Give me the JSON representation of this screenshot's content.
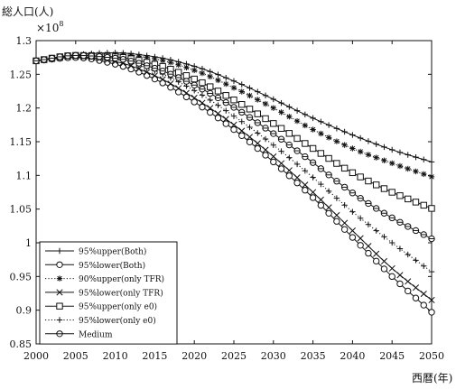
{
  "chart_data": {
    "type": "line",
    "ylabel": "総人口(人)",
    "xlabel": "西暦(年)",
    "y_multiplier": "×10^8",
    "y_multiplier_base": "×10",
    "y_multiplier_exp": "8",
    "xlim": [
      2000,
      2050
    ],
    "ylim": [
      0.85,
      1.3
    ],
    "x_ticks": [
      2000,
      2005,
      2010,
      2015,
      2020,
      2025,
      2030,
      2035,
      2040,
      2045,
      2050
    ],
    "y_ticks": [
      0.85,
      0.9,
      0.95,
      1,
      1.05,
      1.1,
      1.15,
      1.2,
      1.25,
      1.3
    ],
    "y_tick_labels": [
      "0.85",
      "0.9",
      "0.95",
      "1",
      "1.05",
      "1.1",
      "1.15",
      "1.2",
      "1.25",
      "1.3"
    ],
    "grid": false,
    "legend_position": "bottom-left",
    "x": [
      2000,
      2005,
      2010,
      2015,
      2020,
      2025,
      2030,
      2035,
      2040,
      2045,
      2050
    ],
    "series": [
      {
        "name": "95%upper(Both)",
        "marker": "plus",
        "line": "solid",
        "values": [
          1.27,
          1.279,
          1.282,
          1.276,
          1.262,
          1.24,
          1.213,
          1.185,
          1.16,
          1.138,
          1.12
        ]
      },
      {
        "name": "95%lower(Both)",
        "marker": "circle",
        "line": "solid",
        "values": [
          1.27,
          1.275,
          1.265,
          1.243,
          1.209,
          1.168,
          1.12,
          1.067,
          1.008,
          0.95,
          0.897
        ]
      },
      {
        "name": "90%upper(only TFR)",
        "marker": "asterisk",
        "line": "dotted",
        "values": [
          1.27,
          1.279,
          1.28,
          1.273,
          1.256,
          1.23,
          1.2,
          1.168,
          1.14,
          1.118,
          1.098
        ]
      },
      {
        "name": "95%lower(only TFR)",
        "marker": "x",
        "line": "solid",
        "values": [
          1.27,
          1.276,
          1.269,
          1.248,
          1.215,
          1.175,
          1.128,
          1.075,
          1.018,
          0.962,
          0.915
        ]
      },
      {
        "name": "95%upper(only e0)",
        "marker": "square",
        "line": "solid",
        "values": [
          1.27,
          1.278,
          1.276,
          1.265,
          1.243,
          1.212,
          1.177,
          1.14,
          1.104,
          1.075,
          1.051
        ]
      },
      {
        "name": "95%lower(only e0)",
        "marker": "plus",
        "line": "dotted",
        "values": [
          1.27,
          1.277,
          1.272,
          1.255,
          1.226,
          1.188,
          1.145,
          1.097,
          1.046,
          1.0,
          0.957
        ]
      },
      {
        "name": "Medium",
        "marker": "circle-cross",
        "line": "solid",
        "values": [
          1.27,
          1.278,
          1.274,
          1.259,
          1.234,
          1.201,
          1.162,
          1.119,
          1.074,
          1.037,
          1.006
        ]
      }
    ]
  }
}
